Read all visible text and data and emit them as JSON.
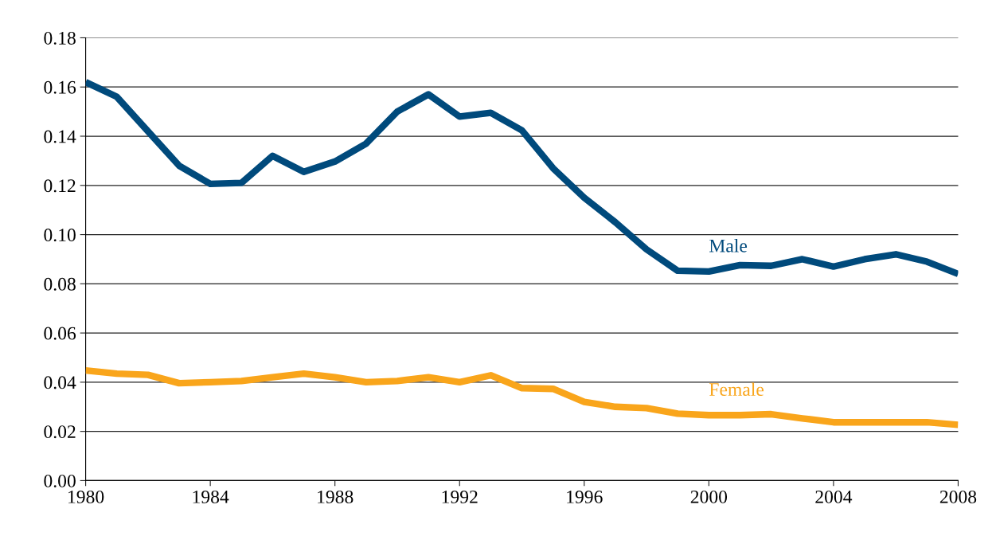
{
  "chart_data": {
    "type": "line",
    "x": [
      1980,
      1981,
      1982,
      1983,
      1984,
      1985,
      1986,
      1987,
      1988,
      1989,
      1990,
      1991,
      1992,
      1993,
      1994,
      1995,
      1996,
      1997,
      1998,
      1999,
      2000,
      2001,
      2002,
      2003,
      2004,
      2005,
      2006,
      2007,
      2008
    ],
    "series": [
      {
        "name": "Male",
        "color": "#004a7c",
        "values": [
          0.162,
          0.156,
          0.142,
          0.128,
          0.1206,
          0.121,
          0.132,
          0.1255,
          0.1297,
          0.137,
          0.15,
          0.157,
          0.148,
          0.1495,
          0.1424,
          0.127,
          0.115,
          0.105,
          0.094,
          0.0853,
          0.085,
          0.0876,
          0.0873,
          0.09,
          0.087,
          0.09,
          0.092,
          0.089,
          0.084
        ]
      },
      {
        "name": "Female",
        "color": "#f9a51b",
        "values": [
          0.0448,
          0.0435,
          0.043,
          0.0396,
          0.04,
          0.0405,
          0.042,
          0.0435,
          0.042,
          0.04,
          0.0405,
          0.042,
          0.04,
          0.0428,
          0.0376,
          0.0373,
          0.032,
          0.03,
          0.0295,
          0.0272,
          0.0266,
          0.0266,
          0.027,
          0.0253,
          0.0237,
          0.0237,
          0.0237,
          0.0237,
          0.0227
        ]
      }
    ],
    "xlim": [
      1980,
      2008
    ],
    "xticks": [
      1980,
      1984,
      1988,
      1992,
      1996,
      2000,
      2004,
      2008
    ],
    "ylim": [
      0,
      0.18
    ],
    "yticks": [
      {
        "value": 0,
        "label": "0.00"
      },
      {
        "value": 0.02,
        "label": "0.02"
      },
      {
        "value": 0.04,
        "label": "0.04"
      },
      {
        "value": 0.06,
        "label": "0.06"
      },
      {
        "value": 0.08,
        "label": "0.08"
      },
      {
        "value": 0.1,
        "label": "0.10"
      },
      {
        "value": 0.12,
        "label": "0.12"
      },
      {
        "value": 0.14,
        "label": "0.14"
      },
      {
        "value": 0.16,
        "label": "0.16"
      },
      {
        "value": 0.18,
        "label": "0.18"
      }
    ],
    "grid": "y",
    "marker": "none",
    "line_style": "solid",
    "legend": false
  }
}
